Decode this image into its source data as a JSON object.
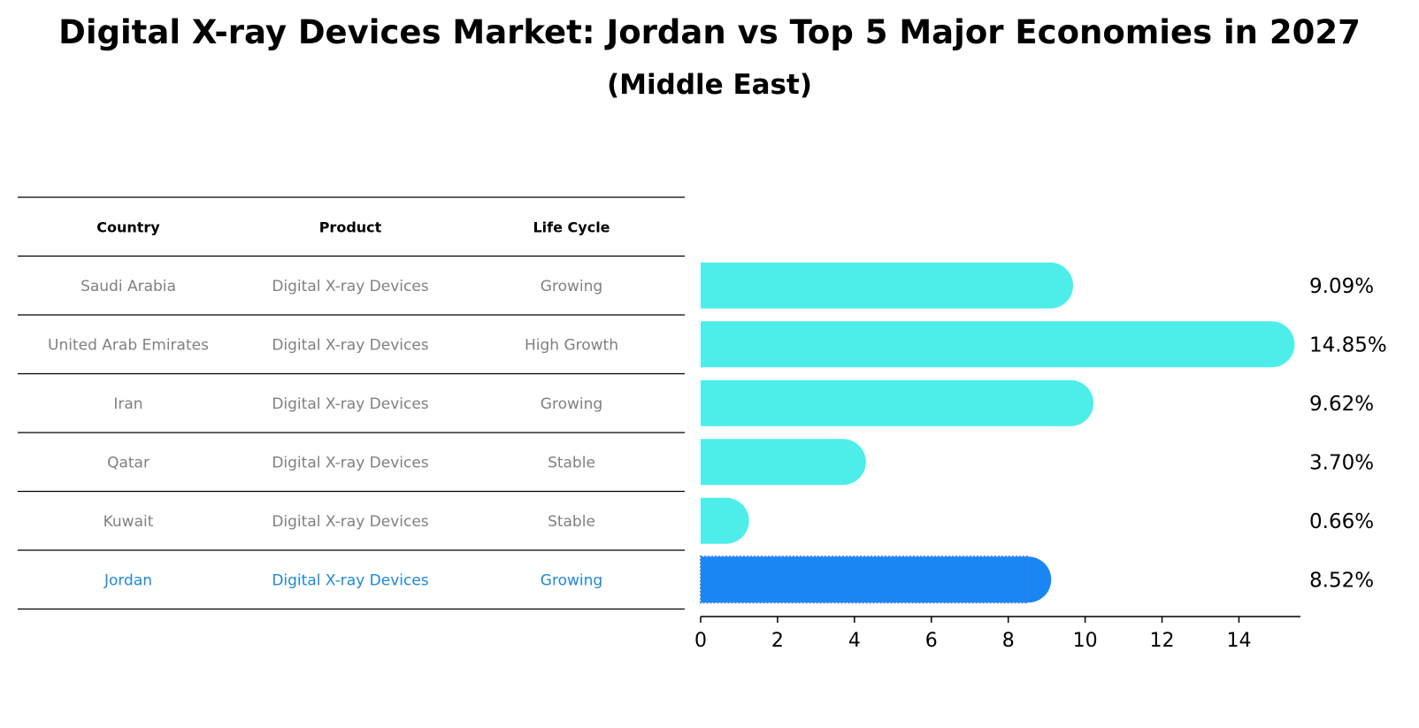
{
  "title": "Digital X-ray Devices Market: Jordan vs Top 5 Major Economies in 2027",
  "subtitle": "(Middle East)",
  "colors": {
    "bar_default": "#4deeea",
    "bar_highlight": "#1a86f4",
    "text_muted": "#808080",
    "text_highlight": "#1f88d6"
  },
  "table": {
    "headers": [
      "Country",
      "Product",
      "Life Cycle"
    ],
    "rows": [
      {
        "country": "Saudi Arabia",
        "product": "Digital X-ray Devices",
        "life_cycle": "Growing",
        "highlight": false
      },
      {
        "country": "United Arab Emirates",
        "product": "Digital X-ray Devices",
        "life_cycle": "High Growth",
        "highlight": false
      },
      {
        "country": "Iran",
        "product": "Digital X-ray Devices",
        "life_cycle": "Growing",
        "highlight": false
      },
      {
        "country": "Qatar",
        "product": "Digital X-ray Devices",
        "life_cycle": "Stable",
        "highlight": false
      },
      {
        "country": "Kuwait",
        "product": "Digital X-ray Devices",
        "life_cycle": "Stable",
        "highlight": false
      },
      {
        "country": "Jordan",
        "product": "Digital X-ray Devices",
        "life_cycle": "Growing",
        "highlight": true
      }
    ]
  },
  "chart_data": {
    "type": "bar",
    "orientation": "horizontal",
    "title": "Digital X-ray Devices Market: Jordan vs Top 5 Major Economies in 2027",
    "subtitle": "(Middle East)",
    "categories": [
      "Saudi Arabia",
      "United Arab Emirates",
      "Iran",
      "Qatar",
      "Kuwait",
      "Jordan"
    ],
    "values": [
      9.09,
      14.85,
      9.62,
      3.7,
      0.66,
      8.52
    ],
    "value_labels": [
      "9.09%",
      "14.85%",
      "9.62%",
      "3.70%",
      "0.66%",
      "8.52%"
    ],
    "highlight_category": "Jordan",
    "xlim": [
      0,
      15.6
    ],
    "xticks": [
      0,
      2,
      4,
      6,
      8,
      10,
      12,
      14
    ],
    "xtick_labels": [
      "0",
      "2",
      "4",
      "6",
      "8",
      "10",
      "12",
      "14"
    ],
    "xlabel": "",
    "ylabel": "",
    "grid": false
  }
}
